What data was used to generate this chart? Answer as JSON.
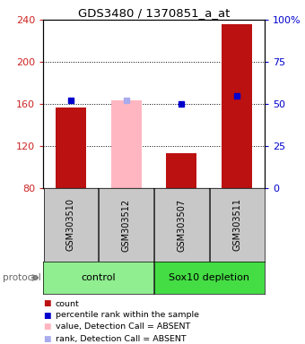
{
  "title": "GDS3480 / 1370851_a_at",
  "samples": [
    "GSM303510",
    "GSM303512",
    "GSM303507",
    "GSM303511"
  ],
  "bar_values": [
    157,
    163,
    113,
    236
  ],
  "bar_colors": [
    "#BB1111",
    "#FFB6C1",
    "#BB1111",
    "#BB1111"
  ],
  "rank_values": [
    52,
    52,
    50,
    55
  ],
  "rank_colors": [
    "#0000CC",
    "#AAAAEE",
    "#0000CC",
    "#0000CC"
  ],
  "ylim_left": [
    80,
    240
  ],
  "ylim_right": [
    0,
    100
  ],
  "yticks_left": [
    80,
    120,
    160,
    200,
    240
  ],
  "yticks_right": [
    0,
    25,
    50,
    75,
    100
  ],
  "yticklabels_right": [
    "0",
    "25",
    "50",
    "75",
    "100%"
  ],
  "left_tick_color": "#CC2222",
  "right_tick_color": "#0000CC",
  "bg_color": "#FFFFFF",
  "grid_dotted_at": [
    120,
    160,
    200
  ],
  "label_box_color": "#C8C8C8",
  "ctrl_color": "#90EE90",
  "sox_color": "#44DD44",
  "protocol_arrow_color": "#888888",
  "legend_items": [
    {
      "label": "count",
      "color": "#BB1111"
    },
    {
      "label": "percentile rank within the sample",
      "color": "#0000CC"
    },
    {
      "label": "value, Detection Call = ABSENT",
      "color": "#FFB6C1"
    },
    {
      "label": "rank, Detection Call = ABSENT",
      "color": "#AAAAEE"
    }
  ]
}
